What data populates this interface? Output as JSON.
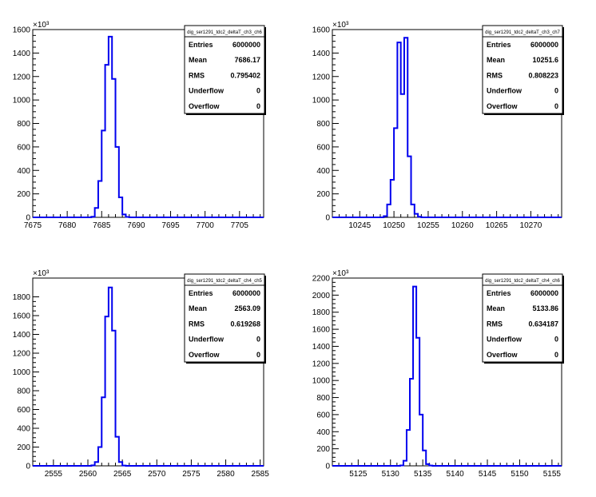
{
  "colors": {
    "line": "#0000ee",
    "axis": "#000000",
    "background": "#ffffff"
  },
  "chart_data": [
    {
      "type": "histogram",
      "stats_title": "dig_ser1291_tdc2_deltaT_ch3_ch6",
      "stats": [
        {
          "label": "Entries",
          "value": "6000000"
        },
        {
          "label": "Mean",
          "value": "7686.17"
        },
        {
          "label": "RMS",
          "value": "0.795402"
        },
        {
          "label": "Underflow",
          "value": "0"
        },
        {
          "label": "Overflow",
          "value": "0"
        }
      ],
      "xlim": [
        7675,
        7708.5
      ],
      "ylim": [
        0,
        1600
      ],
      "y_multiplier": "×10³",
      "xticks": [
        "7675",
        "7680",
        "7685",
        "7690",
        "7695",
        "7700",
        "7705"
      ],
      "yticks": [
        "0",
        "200",
        "400",
        "600",
        "800",
        "1000",
        "1200",
        "1400",
        "1600"
      ],
      "bin_width": 0.5,
      "bins": [
        {
          "x": 7683.5,
          "y": 5
        },
        {
          "x": 7684.0,
          "y": 80
        },
        {
          "x": 7684.5,
          "y": 310
        },
        {
          "x": 7685.0,
          "y": 740
        },
        {
          "x": 7685.5,
          "y": 1300
        },
        {
          "x": 7686.0,
          "y": 1540
        },
        {
          "x": 7686.5,
          "y": 1180
        },
        {
          "x": 7687.0,
          "y": 600
        },
        {
          "x": 7687.5,
          "y": 170
        },
        {
          "x": 7688.0,
          "y": 25
        },
        {
          "x": 7688.5,
          "y": 3
        }
      ]
    },
    {
      "type": "histogram",
      "stats_title": "dig_ser1291_tdc2_deltaT_ch3_ch7",
      "stats": [
        {
          "label": "Entries",
          "value": "6000000"
        },
        {
          "label": "Mean",
          "value": "10251.6"
        },
        {
          "label": "RMS",
          "value": "0.808223"
        },
        {
          "label": "Underflow",
          "value": "0"
        },
        {
          "label": "Overflow",
          "value": "0"
        }
      ],
      "xlim": [
        10241,
        10274.5
      ],
      "ylim": [
        0,
        1600
      ],
      "y_multiplier": "×10³",
      "xticks": [
        "10245",
        "10250",
        "10255",
        "10260",
        "10265",
        "10270"
      ],
      "yticks": [
        "0",
        "200",
        "400",
        "600",
        "800",
        "1000",
        "1200",
        "1400",
        "1600"
      ],
      "bin_width": 0.5,
      "bins": [
        {
          "x": 10248.5,
          "y": 10
        },
        {
          "x": 10249.0,
          "y": 110
        },
        {
          "x": 10249.5,
          "y": 320
        },
        {
          "x": 10250.0,
          "y": 760
        },
        {
          "x": 10250.5,
          "y": 1490
        },
        {
          "x": 10251.0,
          "y": 1050
        },
        {
          "x": 10251.5,
          "y": 1530
        },
        {
          "x": 10252.0,
          "y": 520
        },
        {
          "x": 10252.5,
          "y": 110
        },
        {
          "x": 10253.0,
          "y": 30
        },
        {
          "x": 10253.5,
          "y": 5
        }
      ]
    },
    {
      "type": "histogram",
      "stats_title": "dig_ser1291_tdc2_deltaT_ch4_ch5",
      "stats": [
        {
          "label": "Entries",
          "value": "6000000"
        },
        {
          "label": "Mean",
          "value": "2563.09"
        },
        {
          "label": "RMS",
          "value": "0.619268"
        },
        {
          "label": "Underflow",
          "value": "0"
        },
        {
          "label": "Overflow",
          "value": "0"
        }
      ],
      "xlim": [
        2552,
        2585.5
      ],
      "ylim": [
        0,
        2000
      ],
      "y_multiplier": "×10³",
      "xticks": [
        "2555",
        "2560",
        "2565",
        "2570",
        "2575",
        "2580",
        "2585"
      ],
      "yticks": [
        "0",
        "200",
        "400",
        "600",
        "800",
        "1000",
        "1200",
        "1400",
        "1600",
        "1800"
      ],
      "bin_width": 0.5,
      "bins": [
        {
          "x": 2560.5,
          "y": 5
        },
        {
          "x": 2561.0,
          "y": 40
        },
        {
          "x": 2561.5,
          "y": 200
        },
        {
          "x": 2562.0,
          "y": 730
        },
        {
          "x": 2562.5,
          "y": 1590
        },
        {
          "x": 2563.0,
          "y": 1900
        },
        {
          "x": 2563.5,
          "y": 1440
        },
        {
          "x": 2564.0,
          "y": 310
        },
        {
          "x": 2564.5,
          "y": 40
        },
        {
          "x": 2565.0,
          "y": 3
        }
      ]
    },
    {
      "type": "histogram",
      "stats_title": "dig_ser1291_tdc2_deltaT_ch4_ch6",
      "stats": [
        {
          "label": "Entries",
          "value": "6000000"
        },
        {
          "label": "Mean",
          "value": "5133.86"
        },
        {
          "label": "RMS",
          "value": "0.634187"
        },
        {
          "label": "Underflow",
          "value": "0"
        },
        {
          "label": "Overflow",
          "value": "0"
        }
      ],
      "xlim": [
        5121,
        5156.5
      ],
      "ylim": [
        0,
        2200
      ],
      "y_multiplier": "×10³",
      "xticks": [
        "5125",
        "5130",
        "5135",
        "5140",
        "5145",
        "5150",
        "5155"
      ],
      "yticks": [
        "0",
        "200",
        "400",
        "600",
        "800",
        "1000",
        "1200",
        "1400",
        "1600",
        "1800",
        "2000",
        "2200"
      ],
      "bin_width": 0.5,
      "bins": [
        {
          "x": 5131.5,
          "y": 5
        },
        {
          "x": 5132.0,
          "y": 60
        },
        {
          "x": 5132.5,
          "y": 420
        },
        {
          "x": 5133.0,
          "y": 1020
        },
        {
          "x": 5133.5,
          "y": 2100
        },
        {
          "x": 5134.0,
          "y": 1500
        },
        {
          "x": 5134.5,
          "y": 600
        },
        {
          "x": 5135.0,
          "y": 180
        },
        {
          "x": 5135.5,
          "y": 20
        },
        {
          "x": 5136.0,
          "y": 3
        }
      ]
    }
  ]
}
